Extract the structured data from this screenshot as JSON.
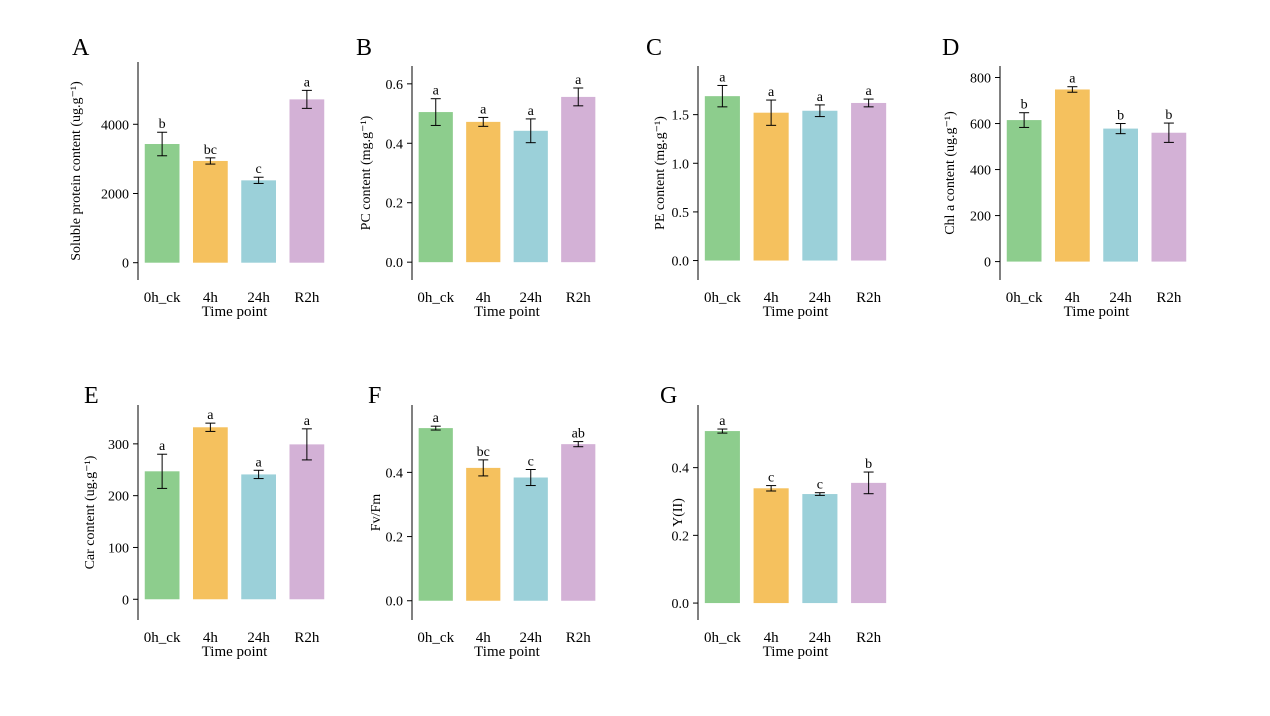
{
  "colors": {
    "0h_ck": "#8dcd8d",
    "4h": "#f5c15e",
    "24h": "#9bd0d9",
    "R2h": "#d3b1d6"
  },
  "chart_data": [
    {
      "type": "bar",
      "panel_label": "A",
      "categories": [
        "0h_ck",
        "4h",
        "24h",
        "R2h"
      ],
      "values": [
        3430,
        2940,
        2380,
        4720
      ],
      "errors": [
        340,
        90,
        90,
        260
      ],
      "significance": [
        "b",
        "bc",
        "c",
        "a"
      ],
      "xlabel": "Time point",
      "ylabel": "Soluble protein content (ug.g⁻¹)",
      "ylim": [
        -500,
        5800
      ],
      "yticks": [
        0,
        2000,
        4000
      ],
      "ytick_labels": [
        "0",
        "2000",
        "4000"
      ]
    },
    {
      "type": "bar",
      "panel_label": "B",
      "categories": [
        "0h_ck",
        "4h",
        "24h",
        "R2h"
      ],
      "values": [
        0.505,
        0.472,
        0.442,
        0.556
      ],
      "errors": [
        0.045,
        0.015,
        0.04,
        0.03
      ],
      "significance": [
        "a",
        "a",
        "a",
        "a"
      ],
      "xlabel": "Time point",
      "ylabel": "PC content (mg.g⁻¹)",
      "ylim": [
        -0.06,
        0.66
      ],
      "yticks": [
        0.0,
        0.2,
        0.4,
        0.6
      ],
      "ytick_labels": [
        "0.0",
        "0.2",
        "0.4",
        "0.6"
      ]
    },
    {
      "type": "bar",
      "panel_label": "C",
      "categories": [
        "0h_ck",
        "4h",
        "24h",
        "R2h"
      ],
      "values": [
        1.69,
        1.52,
        1.54,
        1.62
      ],
      "errors": [
        0.11,
        0.13,
        0.06,
        0.04
      ],
      "significance": [
        "a",
        "a",
        "a",
        "a"
      ],
      "xlabel": "Time point",
      "ylabel": "PE content (mg.g⁻¹)",
      "ylim": [
        -0.2,
        2.0
      ],
      "yticks": [
        0.0,
        0.5,
        1.0,
        1.5
      ],
      "ytick_labels": [
        "0.0",
        "0.5",
        "1.0",
        "1.5"
      ]
    },
    {
      "type": "bar",
      "panel_label": "D",
      "categories": [
        "0h_ck",
        "4h",
        "24h",
        "R2h"
      ],
      "values": [
        615,
        748,
        578,
        560
      ],
      "errors": [
        32,
        12,
        22,
        42
      ],
      "significance": [
        "b",
        "a",
        "b",
        "b"
      ],
      "xlabel": "Time point",
      "ylabel": "Chl a content (ug.g⁻¹)",
      "ylim": [
        -80,
        850
      ],
      "yticks": [
        0,
        200,
        400,
        600,
        800
      ],
      "ytick_labels": [
        "0",
        "200",
        "400",
        "600",
        "800"
      ]
    },
    {
      "type": "bar",
      "panel_label": "E",
      "categories": [
        "0h_ck",
        "4h",
        "24h",
        "R2h"
      ],
      "values": [
        247,
        332,
        241,
        299
      ],
      "errors": [
        33,
        8,
        8,
        30
      ],
      "significance": [
        "a",
        "a",
        "a",
        "a"
      ],
      "xlabel": "Time point",
      "ylabel": "Car content (ug.g⁻¹)",
      "ylim": [
        -40,
        375
      ],
      "yticks": [
        0,
        100,
        200,
        300
      ],
      "ytick_labels": [
        "0",
        "100",
        "200",
        "300"
      ]
    },
    {
      "type": "bar",
      "panel_label": "F",
      "categories": [
        "0h_ck",
        "4h",
        "24h",
        "R2h"
      ],
      "values": [
        0.538,
        0.414,
        0.384,
        0.488
      ],
      "errors": [
        0.006,
        0.025,
        0.025,
        0.008
      ],
      "significance": [
        "a",
        "bc",
        "c",
        "ab"
      ],
      "xlabel": "Time point",
      "ylabel": "Fv/Fm",
      "ylim": [
        -0.06,
        0.61
      ],
      "yticks": [
        0.0,
        0.2,
        0.4
      ],
      "ytick_labels": [
        "0.0",
        "0.2",
        "0.4"
      ]
    },
    {
      "type": "bar",
      "panel_label": "G",
      "categories": [
        "0h_ck",
        "4h",
        "24h",
        "R2h"
      ],
      "values": [
        0.508,
        0.339,
        0.322,
        0.355
      ],
      "errors": [
        0.006,
        0.008,
        0.004,
        0.032
      ],
      "significance": [
        "a",
        "c",
        "c",
        "b"
      ],
      "xlabel": "Time point",
      "ylabel": "Y(II)",
      "ylim": [
        -0.05,
        0.585
      ],
      "yticks": [
        0.0,
        0.2,
        0.4
      ],
      "ytick_labels": [
        "0.0",
        "0.2",
        "0.4"
      ]
    }
  ]
}
